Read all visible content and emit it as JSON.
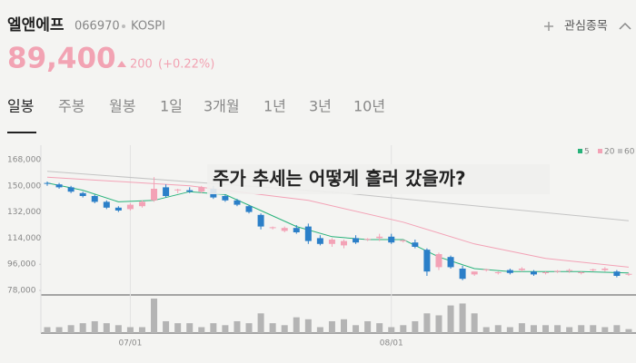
{
  "header": {
    "name": "엘앤에프",
    "code": "066970",
    "market": "KOSPI",
    "watch": "관심종목",
    "price": "89,400",
    "change": "200",
    "change_pct": "(+0.22%)"
  },
  "tabs": [
    "일봉",
    "주봉",
    "월봉",
    "1일",
    "3개월",
    "1년",
    "3년",
    "10년"
  ],
  "overlay": "주가 추세는 어떻게 흘러 갔을까?",
  "chart_data": {
    "type": "candlestick",
    "categories": [
      null,
      null,
      null,
      null,
      null,
      null,
      null,
      "07/01",
      null,
      null,
      null,
      null,
      null,
      null,
      null,
      null,
      null,
      null,
      null,
      null,
      null,
      null,
      null,
      null,
      null,
      null,
      null,
      null,
      null,
      "08/01",
      null,
      null,
      null,
      null,
      null,
      null,
      null,
      null,
      null,
      null,
      null,
      null,
      null,
      null,
      null,
      null,
      null,
      null,
      null,
      null
    ],
    "open": [
      152000,
      151000,
      149000,
      145000,
      143000,
      139000,
      135000,
      134000,
      136000,
      140000,
      149000,
      147000,
      147000,
      146000,
      148000,
      143000,
      140000,
      136000,
      130000,
      121000,
      119000,
      121000,
      122000,
      114000,
      110000,
      109000,
      114000,
      113000,
      114000,
      115000,
      112000,
      111000,
      106000,
      94000,
      101000,
      93000,
      89000,
      92000,
      90000,
      92000,
      92000,
      91000,
      90000,
      91000,
      91500,
      90000,
      92000,
      92000,
      91000,
      89200
    ],
    "high": [
      153000,
      152000,
      150000,
      146000,
      144000,
      140000,
      136000,
      138000,
      140000,
      156000,
      151000,
      148000,
      149000,
      150000,
      150000,
      144000,
      141000,
      137000,
      131000,
      122000,
      122000,
      123000,
      124000,
      116000,
      114000,
      113000,
      116000,
      114000,
      117000,
      117000,
      113000,
      113000,
      107000,
      104000,
      102000,
      95000,
      91000,
      93000,
      91000,
      93000,
      94000,
      92000,
      91000,
      92000,
      93000,
      91000,
      93000,
      94000,
      92000,
      90000
    ],
    "low": [
      150000,
      148000,
      145000,
      142000,
      138000,
      134000,
      132000,
      133000,
      135000,
      139000,
      142000,
      145000,
      145000,
      145000,
      141000,
      139000,
      136000,
      131000,
      120000,
      120000,
      118000,
      117000,
      110000,
      109000,
      108000,
      107000,
      110000,
      112000,
      112000,
      110000,
      111000,
      107000,
      88000,
      92000,
      93000,
      85000,
      88000,
      91000,
      89000,
      89000,
      91000,
      88000,
      89000,
      90000,
      90000,
      89000,
      91000,
      91000,
      87000,
      88000
    ],
    "close": [
      151500,
      149000,
      146000,
      143000,
      139000,
      135000,
      133000,
      137000,
      139000,
      148000,
      143000,
      147500,
      146000,
      149000,
      142000,
      140000,
      137000,
      132000,
      122000,
      121500,
      121000,
      118000,
      112000,
      110000,
      113000,
      112000,
      111000,
      113500,
      115000,
      111000,
      112500,
      108000,
      91000,
      103000,
      94000,
      86000,
      91000,
      92500,
      90500,
      90000,
      93000,
      89000,
      90500,
      91500,
      92000,
      90500,
      92500,
      93000,
      88000,
      89400
    ],
    "up_color": "#f3a2b6",
    "down_color": "#2b7fc8",
    "volume": [
      6,
      6,
      8,
      10,
      12,
      10,
      8,
      6,
      6,
      35,
      12,
      10,
      10,
      6,
      10,
      8,
      12,
      10,
      20,
      10,
      8,
      16,
      14,
      6,
      12,
      14,
      8,
      12,
      10,
      6,
      8,
      12,
      20,
      18,
      28,
      30,
      20,
      6,
      8,
      6,
      10,
      8,
      8,
      8,
      6,
      8,
      8,
      6,
      8,
      4
    ],
    "volume_color": "#b4b4b4",
    "series": [
      {
        "name": "5",
        "color": "#27b27a",
        "x": [
          0,
          3,
          6,
          9,
          12,
          15,
          18,
          21,
          24,
          27,
          30,
          33,
          36,
          39,
          42,
          45,
          49
        ],
        "values": [
          152000,
          147000,
          139000,
          140000,
          146000,
          144000,
          133000,
          122000,
          115000,
          113000,
          113000,
          101000,
          93000,
          91000,
          91000,
          91000,
          90000
        ]
      },
      {
        "name": "20",
        "color": "#f3a2b6",
        "x": [
          0,
          12,
          22,
          30,
          36,
          42,
          49
        ],
        "values": [
          156000,
          150000,
          140000,
          125000,
          110000,
          100000,
          94000
        ]
      },
      {
        "name": "60",
        "color": "#c4c4c4",
        "x": [
          0,
          25,
          49
        ],
        "values": [
          160000,
          145000,
          126000
        ]
      }
    ],
    "ylim": [
      78000,
      178000
    ],
    "yticks": [
      {
        "value": 78000,
        "label": "78,000"
      },
      {
        "value": 96000,
        "label": "96,000"
      },
      {
        "value": 114000,
        "label": "114,000"
      },
      {
        "value": 132000,
        "label": "132,000"
      },
      {
        "value": 150000,
        "label": "150,000"
      },
      {
        "value": 168000,
        "label": "168,000"
      }
    ]
  }
}
